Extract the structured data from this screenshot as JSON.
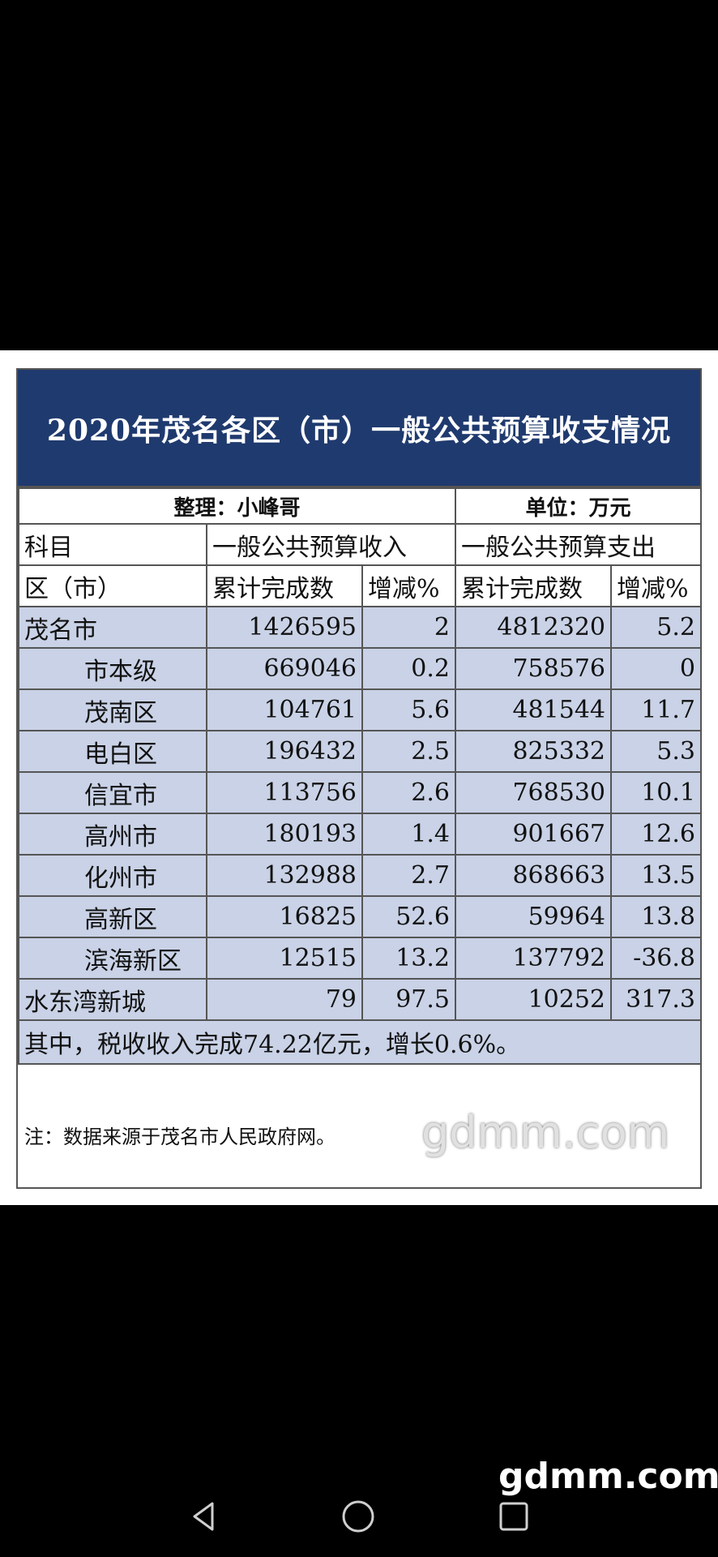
{
  "title": "2020年茂名各区（市）一般公共预算收支情况",
  "meta": {
    "compiler": "整理：小峰哥",
    "unit": "单位：万元"
  },
  "header1": {
    "subject": "科目",
    "income": "一般公共预算收入",
    "expense": "一般公共预算支出"
  },
  "header2": {
    "region": "区（市）",
    "income_total": "累计完成数",
    "income_change": "增减%",
    "expense_total": "累计完成数",
    "expense_change": "增减%"
  },
  "rows": [
    {
      "name": "茂名市",
      "income": "1426595",
      "income_change": "2",
      "expense": "4812320",
      "expense_change": "5.2"
    },
    {
      "name": "市本级",
      "income": "669046",
      "income_change": "0.2",
      "expense": "758576",
      "expense_change": "0"
    },
    {
      "name": "茂南区",
      "income": "104761",
      "income_change": "5.6",
      "expense": "481544",
      "expense_change": "11.7"
    },
    {
      "name": "电白区",
      "income": "196432",
      "income_change": "2.5",
      "expense": "825332",
      "expense_change": "5.3"
    },
    {
      "name": "信宜市",
      "income": "113756",
      "income_change": "2.6",
      "expense": "768530",
      "expense_change": "10.1"
    },
    {
      "name": "高州市",
      "income": "180193",
      "income_change": "1.4",
      "expense": "901667",
      "expense_change": "12.6"
    },
    {
      "name": "化州市",
      "income": "132988",
      "income_change": "2.7",
      "expense": "868663",
      "expense_change": "13.5"
    },
    {
      "name": "高新区",
      "income": "16825",
      "income_change": "52.6",
      "expense": "59964",
      "expense_change": "13.8"
    },
    {
      "name": "滨海新区",
      "income": "12515",
      "income_change": "13.2",
      "expense": "137792",
      "expense_change": "-36.8"
    },
    {
      "name": "水东湾新城",
      "income": "79",
      "income_change": "97.5",
      "expense": "10252",
      "expense_change": "317.3"
    }
  ],
  "tax_note": "其中，税收收入完成74.22亿元，增长0.6%。",
  "source_note": "注：数据来源于茂名市人民政府网。",
  "watermarks": {
    "image": "gdmm.com",
    "corner": "gdmm.com"
  },
  "nav_icons": [
    "back-icon",
    "home-icon",
    "recent-apps-icon"
  ]
}
